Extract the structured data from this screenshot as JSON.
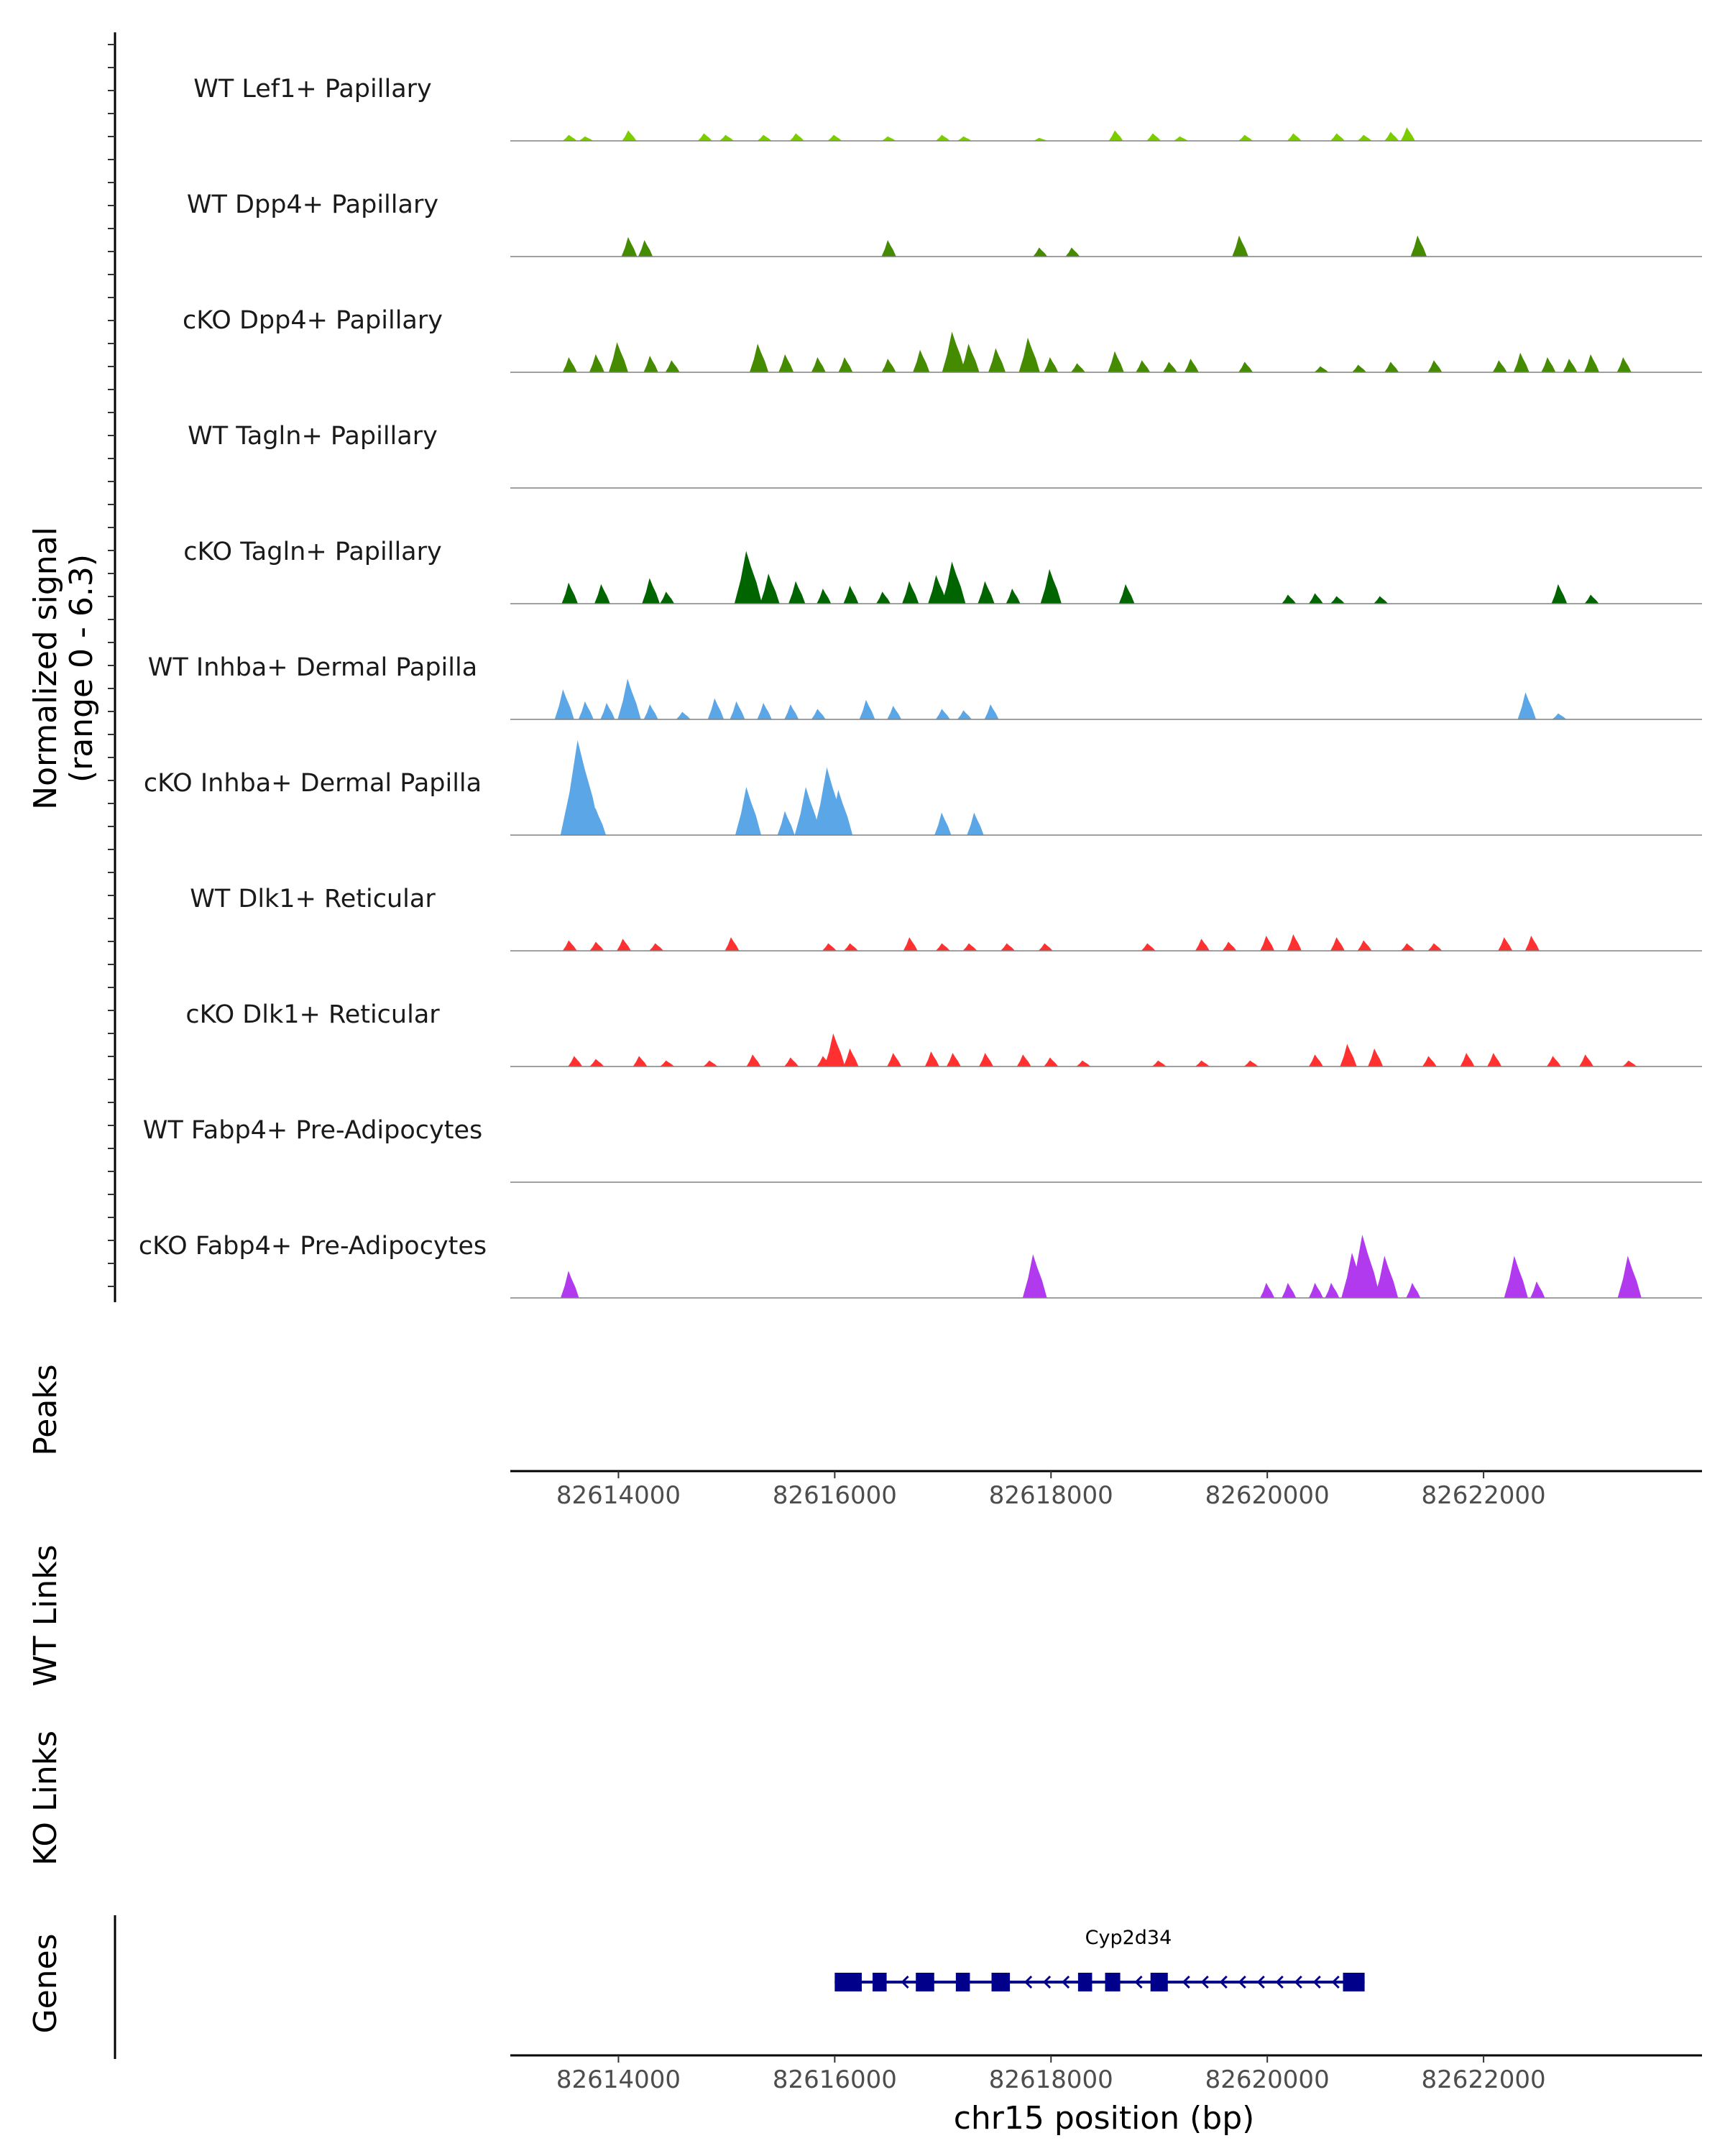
{
  "chart_data": {
    "type": "coverage",
    "chromosome": "chr15",
    "xlim": [
      82613000,
      82624000
    ],
    "ylim": [
      0,
      6.3
    ],
    "ylabel_line1": "Normalized signal",
    "ylabel_line2": "(range 0 - 6.3)",
    "xlabel": "chr15 position (bp)",
    "x_ticks": [
      82614000,
      82616000,
      82618000,
      82620000,
      82622000
    ],
    "tracks": [
      {
        "name": "WT Lef1+ Papillary",
        "color": "#7CCD00",
        "peaks": [
          [
            82613550,
            0.4
          ],
          [
            82613700,
            0.3
          ],
          [
            82614100,
            0.7
          ],
          [
            82614800,
            0.5
          ],
          [
            82615000,
            0.4
          ],
          [
            82615350,
            0.4
          ],
          [
            82615650,
            0.5
          ],
          [
            82616000,
            0.4
          ],
          [
            82616500,
            0.3
          ],
          [
            82617000,
            0.4
          ],
          [
            82617200,
            0.3
          ],
          [
            82617900,
            0.2
          ],
          [
            82618600,
            0.7
          ],
          [
            82618950,
            0.5
          ],
          [
            82619200,
            0.3
          ],
          [
            82619800,
            0.4
          ],
          [
            82620250,
            0.5
          ],
          [
            82620650,
            0.5
          ],
          [
            82620900,
            0.4
          ],
          [
            82621150,
            0.6
          ],
          [
            82621300,
            0.9
          ]
        ]
      },
      {
        "name": "WT Dpp4+ Papillary",
        "color": "#458B00",
        "peaks": [
          [
            82614100,
            1.3
          ],
          [
            82614250,
            1.1
          ],
          [
            82616500,
            1.1
          ],
          [
            82617900,
            0.6
          ],
          [
            82618200,
            0.6
          ],
          [
            82619750,
            1.4
          ],
          [
            82621400,
            1.4
          ]
        ]
      },
      {
        "name": "cKO Dpp4+ Papillary",
        "color": "#458B00",
        "peaks": [
          [
            82613550,
            1.0
          ],
          [
            82613800,
            1.2
          ],
          [
            82614000,
            2.0
          ],
          [
            82614300,
            1.1
          ],
          [
            82614500,
            0.8
          ],
          [
            82615300,
            1.9
          ],
          [
            82615550,
            1.2
          ],
          [
            82615850,
            1.0
          ],
          [
            82616100,
            1.0
          ],
          [
            82616500,
            0.9
          ],
          [
            82616800,
            1.5
          ],
          [
            82617100,
            2.7
          ],
          [
            82617250,
            1.9
          ],
          [
            82617500,
            1.6
          ],
          [
            82617800,
            2.3
          ],
          [
            82618000,
            1.0
          ],
          [
            82618250,
            0.6
          ],
          [
            82618600,
            1.4
          ],
          [
            82618850,
            0.8
          ],
          [
            82619100,
            0.7
          ],
          [
            82619300,
            0.9
          ],
          [
            82619800,
            0.7
          ],
          [
            82620500,
            0.4
          ],
          [
            82620850,
            0.5
          ],
          [
            82621150,
            0.7
          ],
          [
            82621550,
            0.8
          ],
          [
            82622150,
            0.8
          ],
          [
            82622350,
            1.3
          ],
          [
            82622600,
            1.0
          ],
          [
            82622800,
            0.9
          ],
          [
            82623000,
            1.2
          ],
          [
            82623300,
            1.0
          ]
        ]
      },
      {
        "name": "WT Tagln+ Papillary",
        "color": "#006400",
        "peaks": []
      },
      {
        "name": "cKO Tagln+ Papillary",
        "color": "#006400",
        "peaks": [
          [
            82613550,
            1.4
          ],
          [
            82613850,
            1.3
          ],
          [
            82614300,
            1.7
          ],
          [
            82614450,
            0.8
          ],
          [
            82615200,
            3.5
          ],
          [
            82615400,
            2.0
          ],
          [
            82615650,
            1.5
          ],
          [
            82615900,
            1.0
          ],
          [
            82616150,
            1.2
          ],
          [
            82616450,
            0.8
          ],
          [
            82616700,
            1.5
          ],
          [
            82616950,
            1.9
          ],
          [
            82617100,
            2.8
          ],
          [
            82617400,
            1.5
          ],
          [
            82617650,
            1.0
          ],
          [
            82618000,
            2.3
          ],
          [
            82618700,
            1.3
          ],
          [
            82620200,
            0.6
          ],
          [
            82620450,
            0.7
          ],
          [
            82620650,
            0.5
          ],
          [
            82621050,
            0.5
          ],
          [
            82622700,
            1.3
          ],
          [
            82623000,
            0.6
          ]
        ]
      },
      {
        "name": "WT Inhba+ Dermal Papilla",
        "color": "#5AA6E6",
        "peaks": [
          [
            82613500,
            2.0
          ],
          [
            82613700,
            1.2
          ],
          [
            82613900,
            1.1
          ],
          [
            82614100,
            2.7
          ],
          [
            82614300,
            1.0
          ],
          [
            82614600,
            0.5
          ],
          [
            82614900,
            1.4
          ],
          [
            82615100,
            1.2
          ],
          [
            82615350,
            1.1
          ],
          [
            82615600,
            1.0
          ],
          [
            82615850,
            0.7
          ],
          [
            82616300,
            1.3
          ],
          [
            82616550,
            0.9
          ],
          [
            82617000,
            0.7
          ],
          [
            82617200,
            0.6
          ],
          [
            82617450,
            1.0
          ],
          [
            82622400,
            1.8
          ],
          [
            82622700,
            0.4
          ]
        ]
      },
      {
        "name": "cKO Inhba+ Dermal Papilla",
        "color": "#5AA6E6",
        "peaks": [
          [
            82613650,
            6.3
          ],
          [
            82613800,
            1.8
          ],
          [
            82615200,
            3.2
          ],
          [
            82615550,
            1.6
          ],
          [
            82615750,
            3.2
          ],
          [
            82615950,
            4.5
          ],
          [
            82616050,
            3.0
          ],
          [
            82617000,
            1.5
          ],
          [
            82617300,
            1.5
          ]
        ]
      },
      {
        "name": "WT Dlk1+ Reticular",
        "color": "#FF3030",
        "peaks": [
          [
            82613550,
            0.7
          ],
          [
            82613800,
            0.6
          ],
          [
            82614050,
            0.8
          ],
          [
            82614350,
            0.5
          ],
          [
            82615050,
            0.9
          ],
          [
            82615950,
            0.5
          ],
          [
            82616150,
            0.5
          ],
          [
            82616700,
            0.9
          ],
          [
            82617000,
            0.5
          ],
          [
            82617250,
            0.5
          ],
          [
            82617600,
            0.5
          ],
          [
            82617950,
            0.5
          ],
          [
            82618900,
            0.5
          ],
          [
            82619400,
            0.8
          ],
          [
            82619650,
            0.6
          ],
          [
            82620000,
            1.0
          ],
          [
            82620250,
            1.1
          ],
          [
            82620650,
            0.9
          ],
          [
            82620900,
            0.7
          ],
          [
            82621300,
            0.5
          ],
          [
            82621550,
            0.5
          ],
          [
            82622200,
            0.9
          ],
          [
            82622450,
            1.0
          ]
        ]
      },
      {
        "name": "cKO Dlk1+ Reticular",
        "color": "#FF3030",
        "peaks": [
          [
            82613600,
            0.7
          ],
          [
            82613800,
            0.5
          ],
          [
            82614200,
            0.7
          ],
          [
            82614450,
            0.4
          ],
          [
            82614850,
            0.4
          ],
          [
            82615250,
            0.8
          ],
          [
            82615600,
            0.6
          ],
          [
            82615900,
            0.7
          ],
          [
            82616000,
            2.2
          ],
          [
            82616150,
            1.2
          ],
          [
            82616550,
            0.9
          ],
          [
            82616900,
            1.0
          ],
          [
            82617100,
            0.9
          ],
          [
            82617400,
            0.9
          ],
          [
            82617750,
            0.8
          ],
          [
            82618000,
            0.6
          ],
          [
            82618300,
            0.4
          ],
          [
            82619000,
            0.4
          ],
          [
            82619400,
            0.4
          ],
          [
            82619850,
            0.4
          ],
          [
            82620450,
            0.8
          ],
          [
            82620750,
            1.5
          ],
          [
            82621000,
            1.2
          ],
          [
            82621500,
            0.7
          ],
          [
            82621850,
            0.9
          ],
          [
            82622100,
            0.9
          ],
          [
            82622650,
            0.7
          ],
          [
            82622950,
            0.8
          ],
          [
            82623350,
            0.4
          ]
        ]
      },
      {
        "name": "WT Fabp4+ Pre-Adipocytes",
        "color": "#B23AEE",
        "peaks": []
      },
      {
        "name": "cKO Fabp4+ Pre-Adipocytes",
        "color": "#B23AEE",
        "peaks": [
          [
            82613550,
            1.8
          ],
          [
            82617850,
            2.9
          ],
          [
            82620000,
            1.0
          ],
          [
            82620200,
            1.0
          ],
          [
            82620450,
            1.0
          ],
          [
            82620600,
            1.0
          ],
          [
            82620800,
            3.0
          ],
          [
            82620900,
            4.2
          ],
          [
            82621100,
            2.8
          ],
          [
            82621350,
            1.0
          ],
          [
            82622300,
            2.8
          ],
          [
            82622500,
            1.1
          ],
          [
            82623350,
            2.8
          ]
        ]
      }
    ],
    "panels": [
      {
        "label": "Peaks"
      },
      {
        "label": "WT Links"
      },
      {
        "label": "KO Links"
      },
      {
        "label": "Genes"
      }
    ],
    "gene": {
      "name": "Cyp2d34",
      "start": 82616000,
      "end": 82620900,
      "strand": "-",
      "color": "#00008B",
      "exons": [
        [
          82616000,
          82616250
        ],
        [
          82616350,
          82616480
        ],
        [
          82616750,
          82616920
        ],
        [
          82617120,
          82617250
        ],
        [
          82617450,
          82617620
        ],
        [
          82618250,
          82618380
        ],
        [
          82618500,
          82618640
        ],
        [
          82618920,
          82619080
        ],
        [
          82620700,
          82620900
        ]
      ]
    }
  }
}
